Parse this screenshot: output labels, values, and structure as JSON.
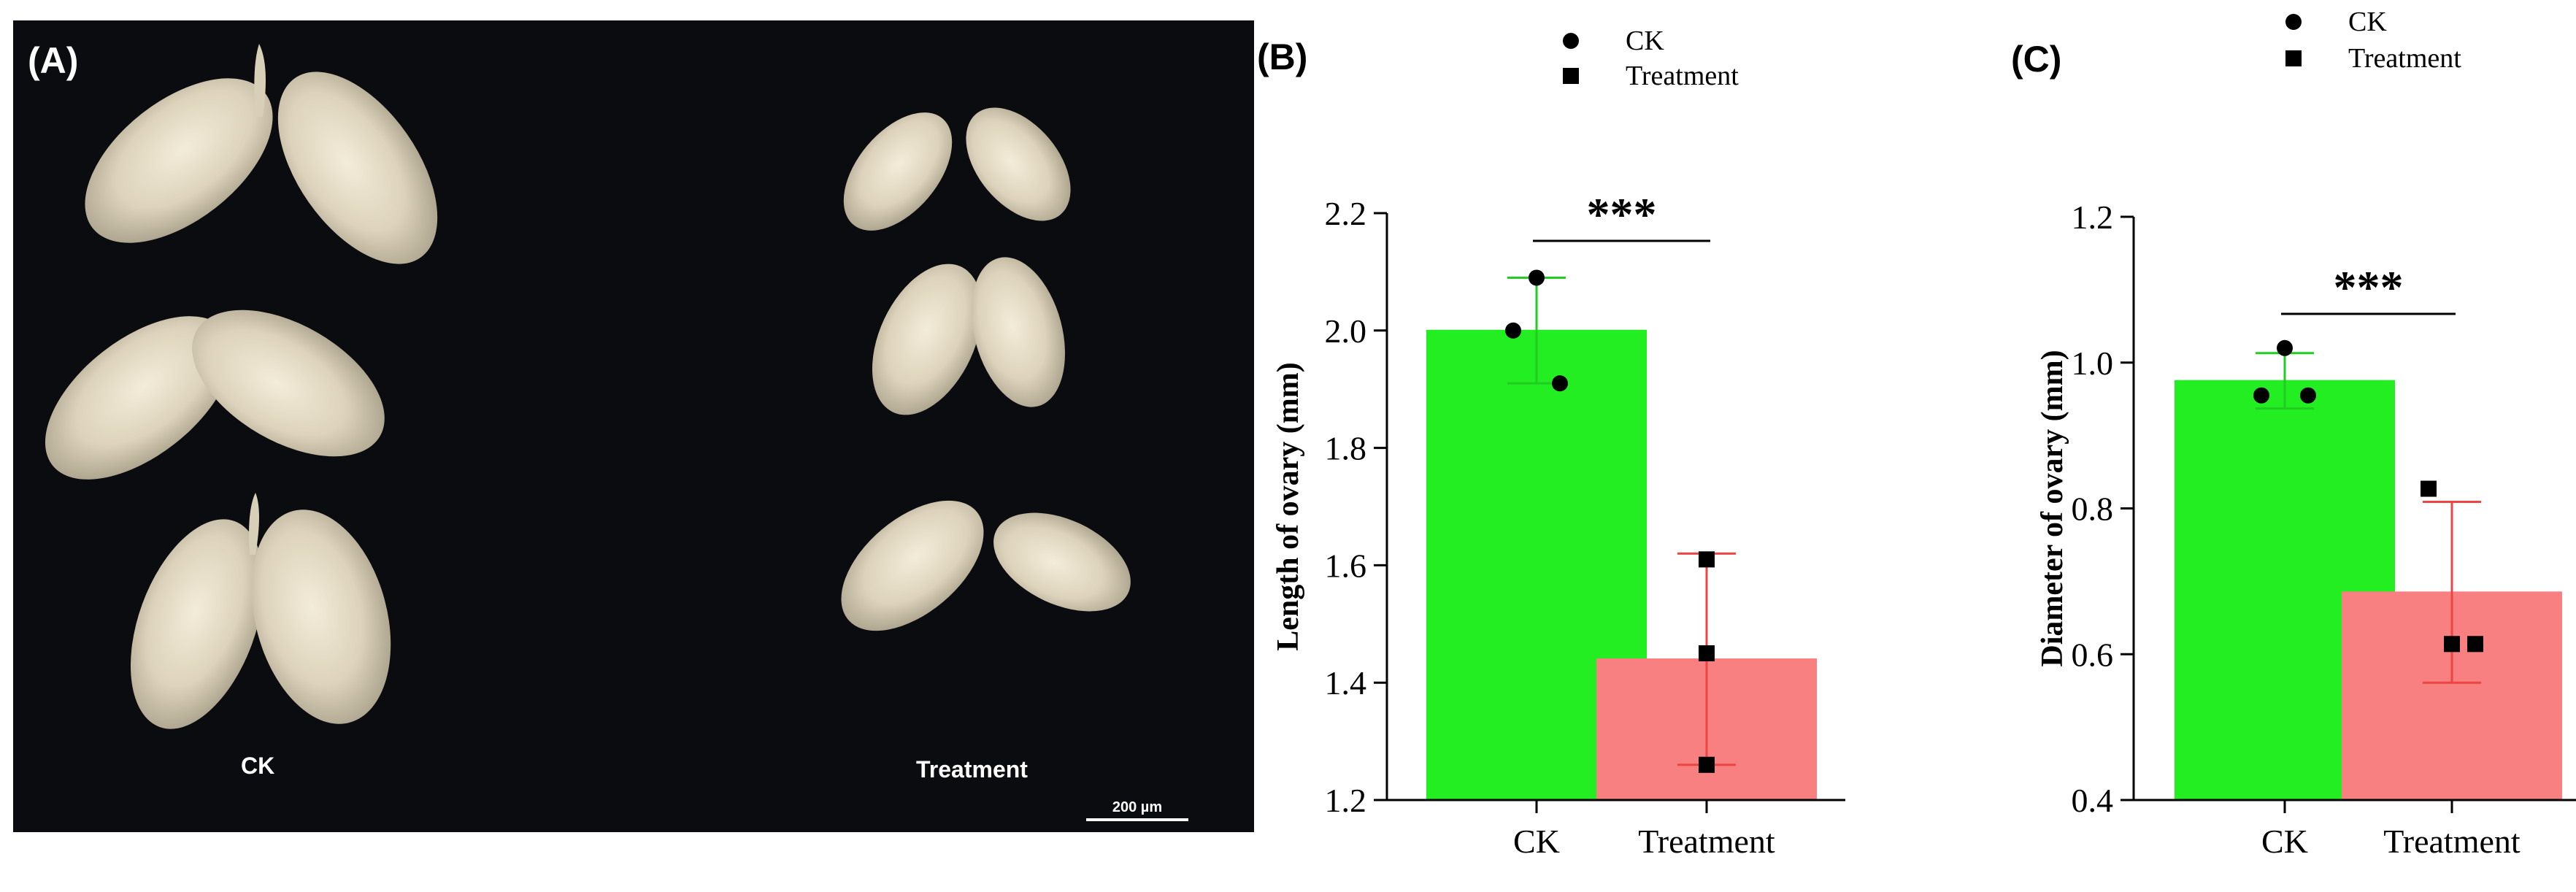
{
  "panel_a": {
    "label": "(A)",
    "left_caption": "CK",
    "right_caption": "Treatment",
    "scale_bar_label": "200 µm"
  },
  "chart_data": [
    {
      "panel_label": "(B)",
      "type": "bar",
      "title": "",
      "xlabel": "",
      "ylabel": "Length of ovary (mm)",
      "categories": [
        "CK",
        "Treatment"
      ],
      "values": [
        2.0,
        1.44
      ],
      "error": [
        0.09,
        0.18
      ],
      "points": [
        [
          2.09,
          2.0,
          1.91
        ],
        [
          1.61,
          1.45,
          1.26
        ]
      ],
      "ylim": [
        1.2,
        2.2
      ],
      "yticks": [
        1.2,
        1.4,
        1.6,
        1.8,
        2.0,
        2.2
      ],
      "ytick_labels": [
        "1.2",
        "1.4",
        "1.6",
        "1.8",
        "2.0",
        "2.2"
      ],
      "significance": "***",
      "legend": [
        {
          "label": "CK",
          "marker": "circle"
        },
        {
          "label": "Treatment",
          "marker": "square"
        }
      ],
      "legend_position": "top-right",
      "bar_colors": [
        "#22ee22",
        "#f88080"
      ],
      "error_colors": [
        "#22cc22",
        "#ee4444"
      ]
    },
    {
      "panel_label": "(C)",
      "type": "bar",
      "title": "",
      "xlabel": "",
      "ylabel": "Diameter of ovary (mm)",
      "categories": [
        "CK",
        "Treatment"
      ],
      "values": [
        0.975,
        0.685
      ],
      "error": [
        0.038,
        0.124
      ],
      "points": [
        [
          1.02,
          0.955,
          0.955
        ],
        [
          0.827,
          0.614,
          0.614
        ]
      ],
      "ylim": [
        0.4,
        1.2
      ],
      "yticks": [
        0.4,
        0.6,
        0.8,
        1.0,
        1.2
      ],
      "ytick_labels": [
        "0.4",
        "0.6",
        "0.8",
        "1.0",
        "1.2"
      ],
      "significance": "***",
      "legend": [
        {
          "label": "CK",
          "marker": "circle"
        },
        {
          "label": "Treatment",
          "marker": "square"
        }
      ],
      "legend_position": "top-right",
      "bar_colors": [
        "#22ee22",
        "#f88080"
      ],
      "error_colors": [
        "#22cc22",
        "#ee4444"
      ]
    }
  ]
}
